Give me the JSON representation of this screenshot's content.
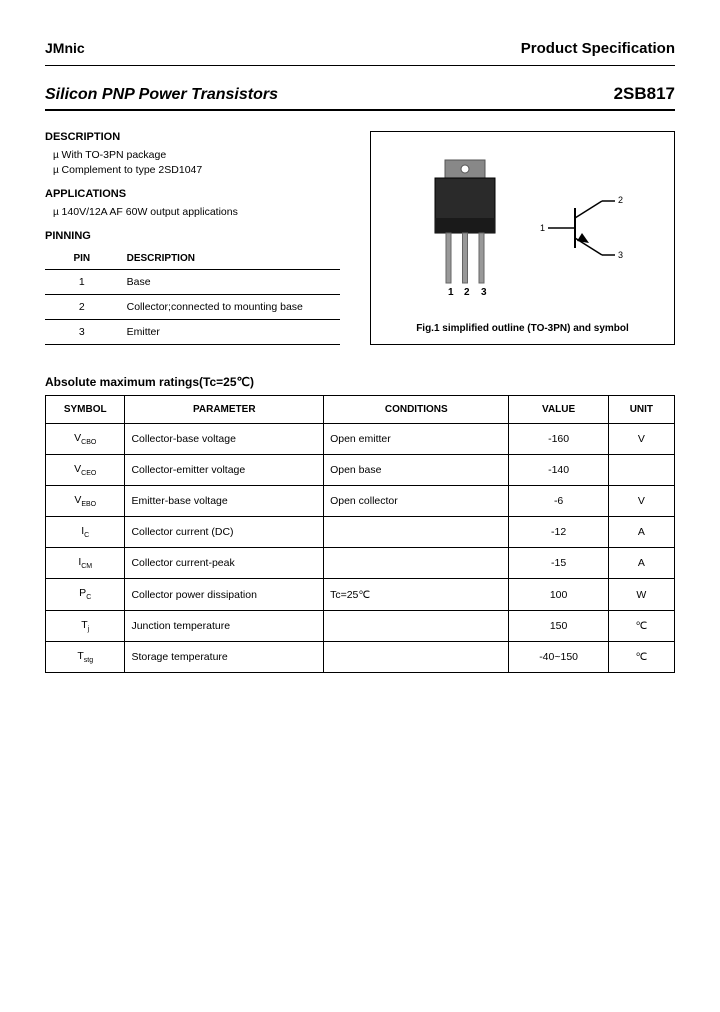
{
  "header": {
    "brand": "JMnic",
    "spec": "Product Specification"
  },
  "title": {
    "left": "Silicon PNP Power Transistors",
    "right": "2SB817"
  },
  "description": {
    "heading": "DESCRIPTION",
    "items": [
      "With TO-3PN package",
      "Complement to type 2SD1047"
    ]
  },
  "applications": {
    "heading": "APPLICATIONS",
    "items": [
      "140V/12A AF 60W output applications"
    ]
  },
  "pinning": {
    "heading": "PINNING",
    "col_pin": "PIN",
    "col_desc": "DESCRIPTION",
    "rows": [
      {
        "pin": "1",
        "desc": "Base"
      },
      {
        "pin": "2",
        "desc": "Collector;connected to mounting base"
      },
      {
        "pin": "3",
        "desc": "Emitter"
      }
    ]
  },
  "figure": {
    "caption": "Fig.1 simplified outline (TO-3PN) and symbol",
    "pin_labels": [
      "1",
      "2",
      "3"
    ],
    "symbol_labels": {
      "1": "1",
      "2": "2",
      "3": "3"
    },
    "colors": {
      "body": "#2a2a2a",
      "tab": "#888888",
      "pins": "#999999"
    }
  },
  "ratings": {
    "title": "Absolute maximum ratings(Tc=25℃)",
    "headers": {
      "symbol": "SYMBOL",
      "parameter": "PARAMETER",
      "conditions": "CONDITIONS",
      "value": "VALUE",
      "unit": "UNIT"
    },
    "rows": [
      {
        "symbol_main": "V",
        "symbol_sub": "CBO",
        "parameter": "Collector-base voltage",
        "conditions": "Open emitter",
        "value": "-160",
        "unit": "V"
      },
      {
        "symbol_main": "V",
        "symbol_sub": "CEO",
        "parameter": "Collector-emitter voltage",
        "conditions": "Open base",
        "value": "-140",
        "unit": ""
      },
      {
        "symbol_main": "V",
        "symbol_sub": "EBO",
        "parameter": "Emitter-base voltage",
        "conditions": "Open collector",
        "value": "-6",
        "unit": "V"
      },
      {
        "symbol_main": "I",
        "symbol_sub": "C",
        "parameter": "Collector current (DC)",
        "conditions": "",
        "value": "-12",
        "unit": "A"
      },
      {
        "symbol_main": "I",
        "symbol_sub": "CM",
        "parameter": "Collector current-peak",
        "conditions": "",
        "value": "-15",
        "unit": "A"
      },
      {
        "symbol_main": "P",
        "symbol_sub": "C",
        "parameter": "Collector power dissipation",
        "conditions": "Tc=25℃",
        "value": "100",
        "unit": "W"
      },
      {
        "symbol_main": "T",
        "symbol_sub": "j",
        "parameter": "Junction temperature",
        "conditions": "",
        "value": "150",
        "unit": "℃"
      },
      {
        "symbol_main": "T",
        "symbol_sub": "stg",
        "parameter": "Storage temperature",
        "conditions": "",
        "value": "-40~150",
        "unit": "℃"
      }
    ]
  }
}
